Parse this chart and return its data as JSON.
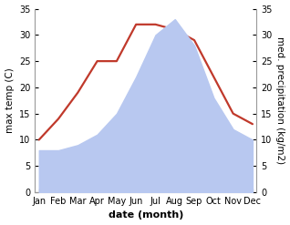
{
  "months": [
    "Jan",
    "Feb",
    "Mar",
    "Apr",
    "May",
    "Jun",
    "Jul",
    "Aug",
    "Sep",
    "Oct",
    "Nov",
    "Dec"
  ],
  "temp": [
    10,
    14,
    19,
    25,
    25,
    32,
    32,
    31,
    29,
    22,
    15,
    13
  ],
  "precip": [
    8,
    8,
    9,
    11,
    15,
    22,
    30,
    33,
    28,
    18,
    12,
    10
  ],
  "temp_color": "#c0392b",
  "precip_color": "#b8c8f0",
  "ylim_left": [
    0,
    35
  ],
  "ylim_right": [
    0,
    35
  ],
  "xlabel": "date (month)",
  "ylabel_left": "max temp (C)",
  "ylabel_right": "med. precipitation (kg/m2)",
  "bg_color": "#ffffff",
  "spine_color": "#999999",
  "label_fontsize": 7.5,
  "tick_fontsize": 7,
  "linewidth": 1.6
}
